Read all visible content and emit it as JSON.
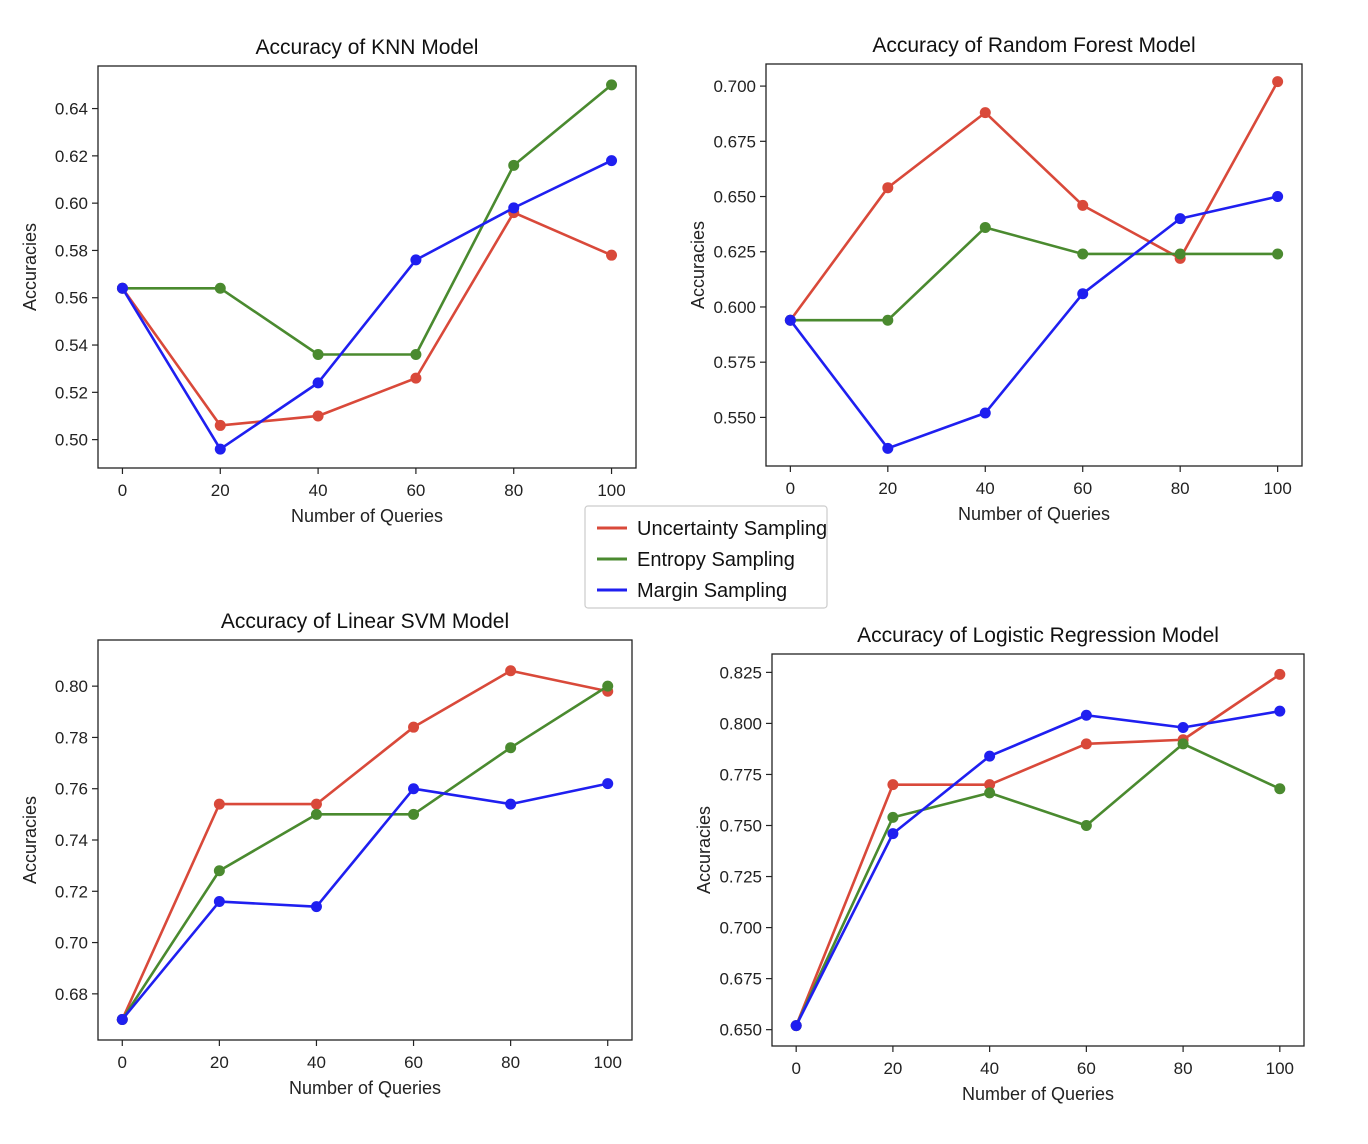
{
  "legend": {
    "entries": [
      {
        "name": "Uncertainty Sampling",
        "color": "#d9493a"
      },
      {
        "name": "Entropy Sampling",
        "color": "#4a8a2f"
      },
      {
        "name": "Margin Sampling",
        "color": "#1f1ff0"
      }
    ],
    "placement": "center"
  },
  "chart_data": [
    {
      "type": "line",
      "title": "Accuracy of KNN Model",
      "xlabel": "Number of Queries",
      "ylabel": "Accuracies",
      "x": [
        0,
        20,
        40,
        60,
        80,
        100
      ],
      "xticks": [
        "0",
        "20",
        "40",
        "60",
        "80",
        "100"
      ],
      "yticks": [
        "0.50",
        "0.52",
        "0.54",
        "0.56",
        "0.58",
        "0.60",
        "0.62",
        "0.64"
      ],
      "xlim": [
        -5,
        105
      ],
      "ylim": [
        0.488,
        0.658
      ],
      "grid": false,
      "series": [
        {
          "name": "Uncertainty Sampling",
          "color": "#d9493a",
          "values": [
            0.564,
            0.506,
            0.51,
            0.526,
            0.596,
            0.578
          ]
        },
        {
          "name": "Entropy Sampling",
          "color": "#4a8a2f",
          "values": [
            0.564,
            0.564,
            0.536,
            0.536,
            0.616,
            0.65
          ]
        },
        {
          "name": "Margin Sampling",
          "color": "#1f1ff0",
          "values": [
            0.564,
            0.496,
            0.524,
            0.576,
            0.598,
            0.618
          ]
        }
      ]
    },
    {
      "type": "line",
      "title": "Accuracy of Random Forest Model",
      "xlabel": "Number of Queries",
      "ylabel": "Accuracies",
      "x": [
        0,
        20,
        40,
        60,
        80,
        100
      ],
      "xticks": [
        "0",
        "20",
        "40",
        "60",
        "80",
        "100"
      ],
      "yticks": [
        "0.550",
        "0.575",
        "0.600",
        "0.625",
        "0.650",
        "0.675",
        "0.700"
      ],
      "xlim": [
        -5,
        105
      ],
      "ylim": [
        0.528,
        0.71
      ],
      "grid": false,
      "series": [
        {
          "name": "Uncertainty Sampling",
          "color": "#d9493a",
          "values": [
            0.594,
            0.654,
            0.688,
            0.646,
            0.622,
            0.702
          ]
        },
        {
          "name": "Entropy Sampling",
          "color": "#4a8a2f",
          "values": [
            0.594,
            0.594,
            0.636,
            0.624,
            0.624,
            0.624
          ]
        },
        {
          "name": "Margin Sampling",
          "color": "#1f1ff0",
          "values": [
            0.594,
            0.536,
            0.552,
            0.606,
            0.64,
            0.65
          ]
        }
      ]
    },
    {
      "type": "line",
      "title": "Accuracy of Linear SVM Model",
      "xlabel": "Number of Queries",
      "ylabel": "Accuracies",
      "x": [
        0,
        20,
        40,
        60,
        80,
        100
      ],
      "xticks": [
        "0",
        "20",
        "40",
        "60",
        "80",
        "100"
      ],
      "yticks": [
        "0.68",
        "0.70",
        "0.72",
        "0.74",
        "0.76",
        "0.78",
        "0.80"
      ],
      "xlim": [
        -5,
        105
      ],
      "ylim": [
        0.662,
        0.818
      ],
      "grid": false,
      "series": [
        {
          "name": "Uncertainty Sampling",
          "color": "#d9493a",
          "values": [
            0.67,
            0.754,
            0.754,
            0.784,
            0.806,
            0.798
          ]
        },
        {
          "name": "Entropy Sampling",
          "color": "#4a8a2f",
          "values": [
            0.67,
            0.728,
            0.75,
            0.75,
            0.776,
            0.8
          ]
        },
        {
          "name": "Margin Sampling",
          "color": "#1f1ff0",
          "values": [
            0.67,
            0.716,
            0.714,
            0.76,
            0.754,
            0.762
          ]
        }
      ]
    },
    {
      "type": "line",
      "title": "Accuracy of Logistic Regression Model",
      "xlabel": "Number of Queries",
      "ylabel": "Accuracies",
      "x": [
        0,
        20,
        40,
        60,
        80,
        100
      ],
      "xticks": [
        "0",
        "20",
        "40",
        "60",
        "80",
        "100"
      ],
      "yticks": [
        "0.650",
        "0.675",
        "0.700",
        "0.725",
        "0.750",
        "0.775",
        "0.800",
        "0.825"
      ],
      "xlim": [
        -5,
        105
      ],
      "ylim": [
        0.642,
        0.834
      ],
      "grid": false,
      "series": [
        {
          "name": "Uncertainty Sampling",
          "color": "#d9493a",
          "values": [
            0.652,
            0.77,
            0.77,
            0.79,
            0.792,
            0.824
          ]
        },
        {
          "name": "Entropy Sampling",
          "color": "#4a8a2f",
          "values": [
            0.652,
            0.754,
            0.766,
            0.75,
            0.79,
            0.768
          ]
        },
        {
          "name": "Margin Sampling",
          "color": "#1f1ff0",
          "values": [
            0.652,
            0.746,
            0.784,
            0.804,
            0.798,
            0.806
          ]
        }
      ]
    }
  ]
}
